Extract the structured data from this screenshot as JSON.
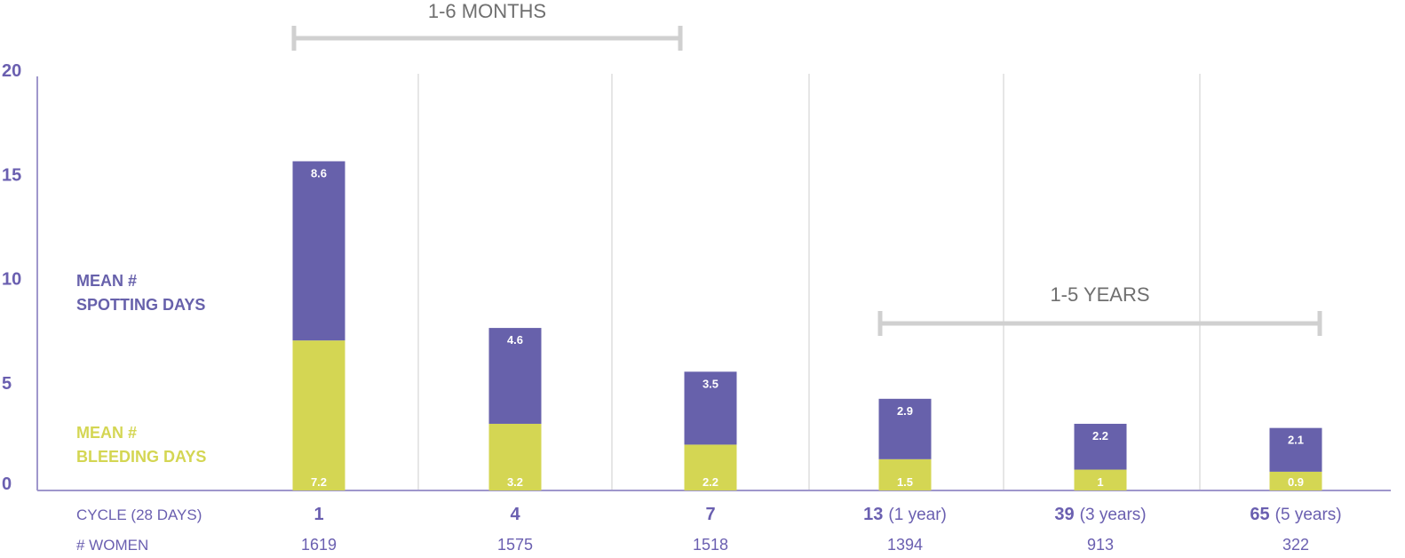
{
  "chart_data": {
    "type": "bar",
    "stacked": true,
    "categories": [
      "1",
      "4",
      "7",
      "13",
      "39",
      "65"
    ],
    "category_suffixes": [
      "",
      "",
      "",
      "(1 year)",
      "(3 years)",
      "(5 years)"
    ],
    "women": [
      "1619",
      "1575",
      "1518",
      "1394",
      "913",
      "322"
    ],
    "series": [
      {
        "name": "MEAN # BLEEDING DAYS",
        "values": [
          7.2,
          3.2,
          2.2,
          1.5,
          1,
          0.9
        ],
        "color": "#d4d653"
      },
      {
        "name": "MEAN # SPOTTING DAYS",
        "values": [
          8.6,
          4.6,
          3.5,
          2.9,
          2.2,
          2.1
        ],
        "color": "#6761ab"
      }
    ],
    "legend": [
      {
        "lines": [
          "MEAN #",
          "SPOTTING DAYS"
        ],
        "color": "#6761ab"
      },
      {
        "lines": [
          "MEAN #",
          "BLEEDING DAYS"
        ],
        "color": "#d4d653"
      }
    ],
    "ylim": [
      0,
      20
    ],
    "yticks": [
      0,
      5,
      10,
      15,
      20
    ],
    "row_labels": {
      "cycle": "CYCLE (28 DAYS)",
      "women": "# WOMEN"
    },
    "brackets": [
      {
        "label": "1-6 MONTHS",
        "from_category": 0,
        "to_category": 2
      },
      {
        "label": "1-5 YEARS",
        "from_category": 3,
        "to_category": 5
      }
    ],
    "grid": true
  }
}
